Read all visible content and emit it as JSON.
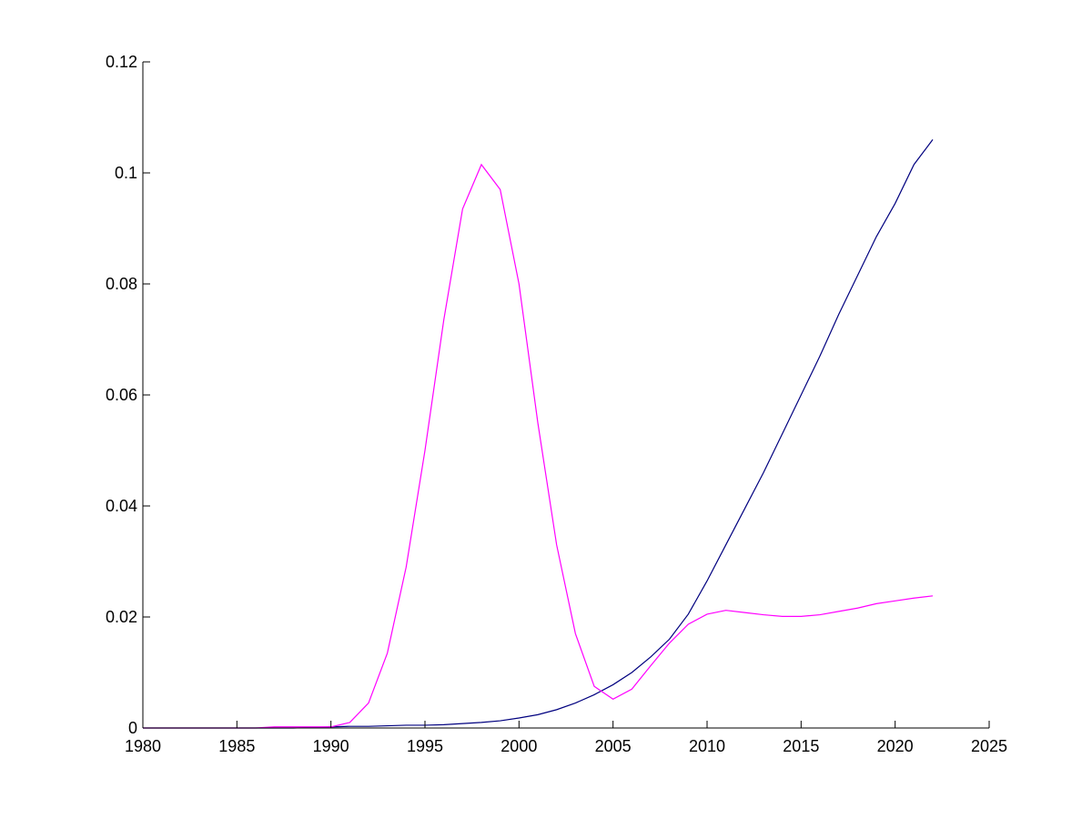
{
  "chart_data": {
    "type": "line",
    "title": "",
    "xlabel": "",
    "ylabel": "",
    "xlim": [
      1980,
      2025
    ],
    "ylim": [
      0,
      0.12
    ],
    "xticks": [
      1980,
      1985,
      1990,
      1995,
      2000,
      2005,
      2010,
      2015,
      2020,
      2025
    ],
    "xtick_labels": [
      "1980",
      "1985",
      "1990",
      "1995",
      "2000",
      "2005",
      "2010",
      "2015",
      "2020",
      "2025"
    ],
    "yticks": [
      0,
      0.02,
      0.04,
      0.06,
      0.08,
      0.1,
      0.12
    ],
    "ytick_labels": [
      "0",
      "0.02",
      "0.04",
      "0.06",
      "0.08",
      "0.1",
      "0.12"
    ],
    "grid": false,
    "legend": "none",
    "series": [
      {
        "color": "#00007f",
        "x": [
          1980,
          1981,
          1982,
          1983,
          1984,
          1985,
          1986,
          1987,
          1988,
          1989,
          1990,
          1991,
          1992,
          1993,
          1994,
          1995,
          1996,
          1997,
          1998,
          1999,
          2000,
          2001,
          2002,
          2003,
          2004,
          2005,
          2006,
          2007,
          2008,
          2009,
          2010,
          2011,
          2012,
          2013,
          2014,
          2015,
          2016,
          2017,
          2018,
          2019,
          2020,
          2021,
          2022
        ],
        "y": [
          0,
          0,
          0,
          0,
          0,
          0,
          0,
          0,
          0,
          0.0001,
          0.0002,
          0.0003,
          0.0003,
          0.0004,
          0.0005,
          0.0005,
          0.0006,
          0.0008,
          0.001,
          0.0013,
          0.0018,
          0.0024,
          0.0033,
          0.0045,
          0.006,
          0.0078,
          0.01,
          0.0128,
          0.016,
          0.0205,
          0.0265,
          0.033,
          0.0395,
          0.046,
          0.053,
          0.06,
          0.067,
          0.0745,
          0.0815,
          0.0885,
          0.0945,
          0.1015,
          0.106
        ]
      },
      {
        "color": "#ff00ff",
        "x": [
          1980,
          1981,
          1982,
          1983,
          1984,
          1985,
          1986,
          1987,
          1988,
          1989,
          1990,
          1991,
          1992,
          1993,
          1994,
          1995,
          1996,
          1997,
          1998,
          1999,
          2000,
          2001,
          2002,
          2003,
          2004,
          2005,
          2006,
          2007,
          2008,
          2009,
          2010,
          2011,
          2012,
          2013,
          2014,
          2015,
          2016,
          2017,
          2018,
          2019,
          2020,
          2021,
          2022
        ],
        "y": [
          0,
          0,
          0,
          0,
          0,
          0,
          0,
          0.0002,
          0.0002,
          0.0002,
          0.0002,
          0.001,
          0.0045,
          0.0135,
          0.029,
          0.05,
          0.0735,
          0.0935,
          0.1015,
          0.097,
          0.08,
          0.055,
          0.033,
          0.017,
          0.0075,
          0.0052,
          0.007,
          0.0112,
          0.0153,
          0.0187,
          0.0205,
          0.0212,
          0.0208,
          0.0204,
          0.0201,
          0.0201,
          0.0204,
          0.021,
          0.0216,
          0.0224,
          0.0229,
          0.0234,
          0.0238
        ]
      }
    ]
  }
}
